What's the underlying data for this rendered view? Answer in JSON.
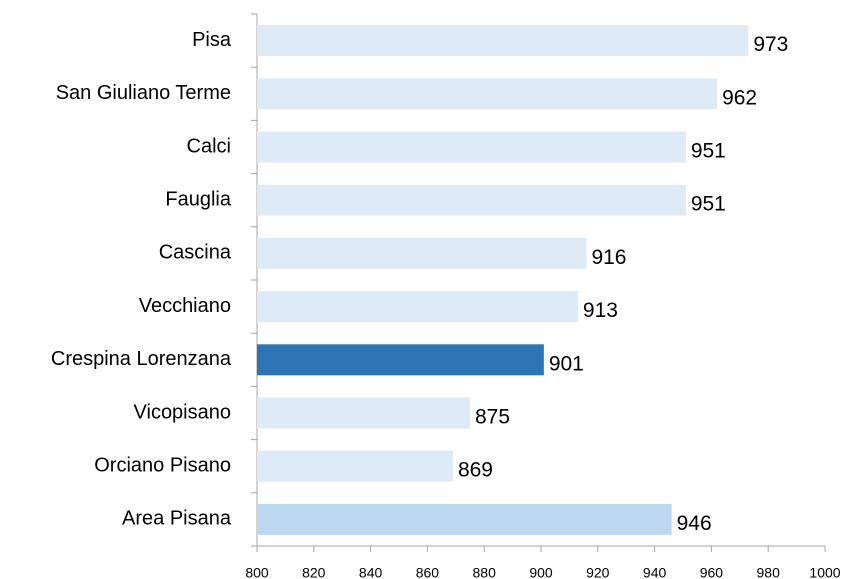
{
  "chart_data": {
    "type": "bar",
    "orientation": "horizontal",
    "categories": [
      "Pisa",
      "San Giuliano Terme",
      "Calci",
      "Fauglia",
      "Cascina",
      "Vecchiano",
      "Crespina Lorenzana",
      "Vicopisano",
      "Orciano Pisano",
      "Area Pisana"
    ],
    "values": [
      973,
      962,
      951,
      951,
      916,
      913,
      901,
      875,
      869,
      946
    ],
    "colors": [
      "#deeaf6",
      "#deeaf6",
      "#deeaf6",
      "#deeaf6",
      "#deeaf6",
      "#deeaf6",
      "#2e75b6",
      "#deeaf6",
      "#deeaf6",
      "#bdd7ee"
    ],
    "xlim": [
      800,
      1000
    ],
    "xticks": [
      800,
      820,
      840,
      860,
      880,
      900,
      920,
      940,
      960,
      980,
      1000
    ]
  }
}
